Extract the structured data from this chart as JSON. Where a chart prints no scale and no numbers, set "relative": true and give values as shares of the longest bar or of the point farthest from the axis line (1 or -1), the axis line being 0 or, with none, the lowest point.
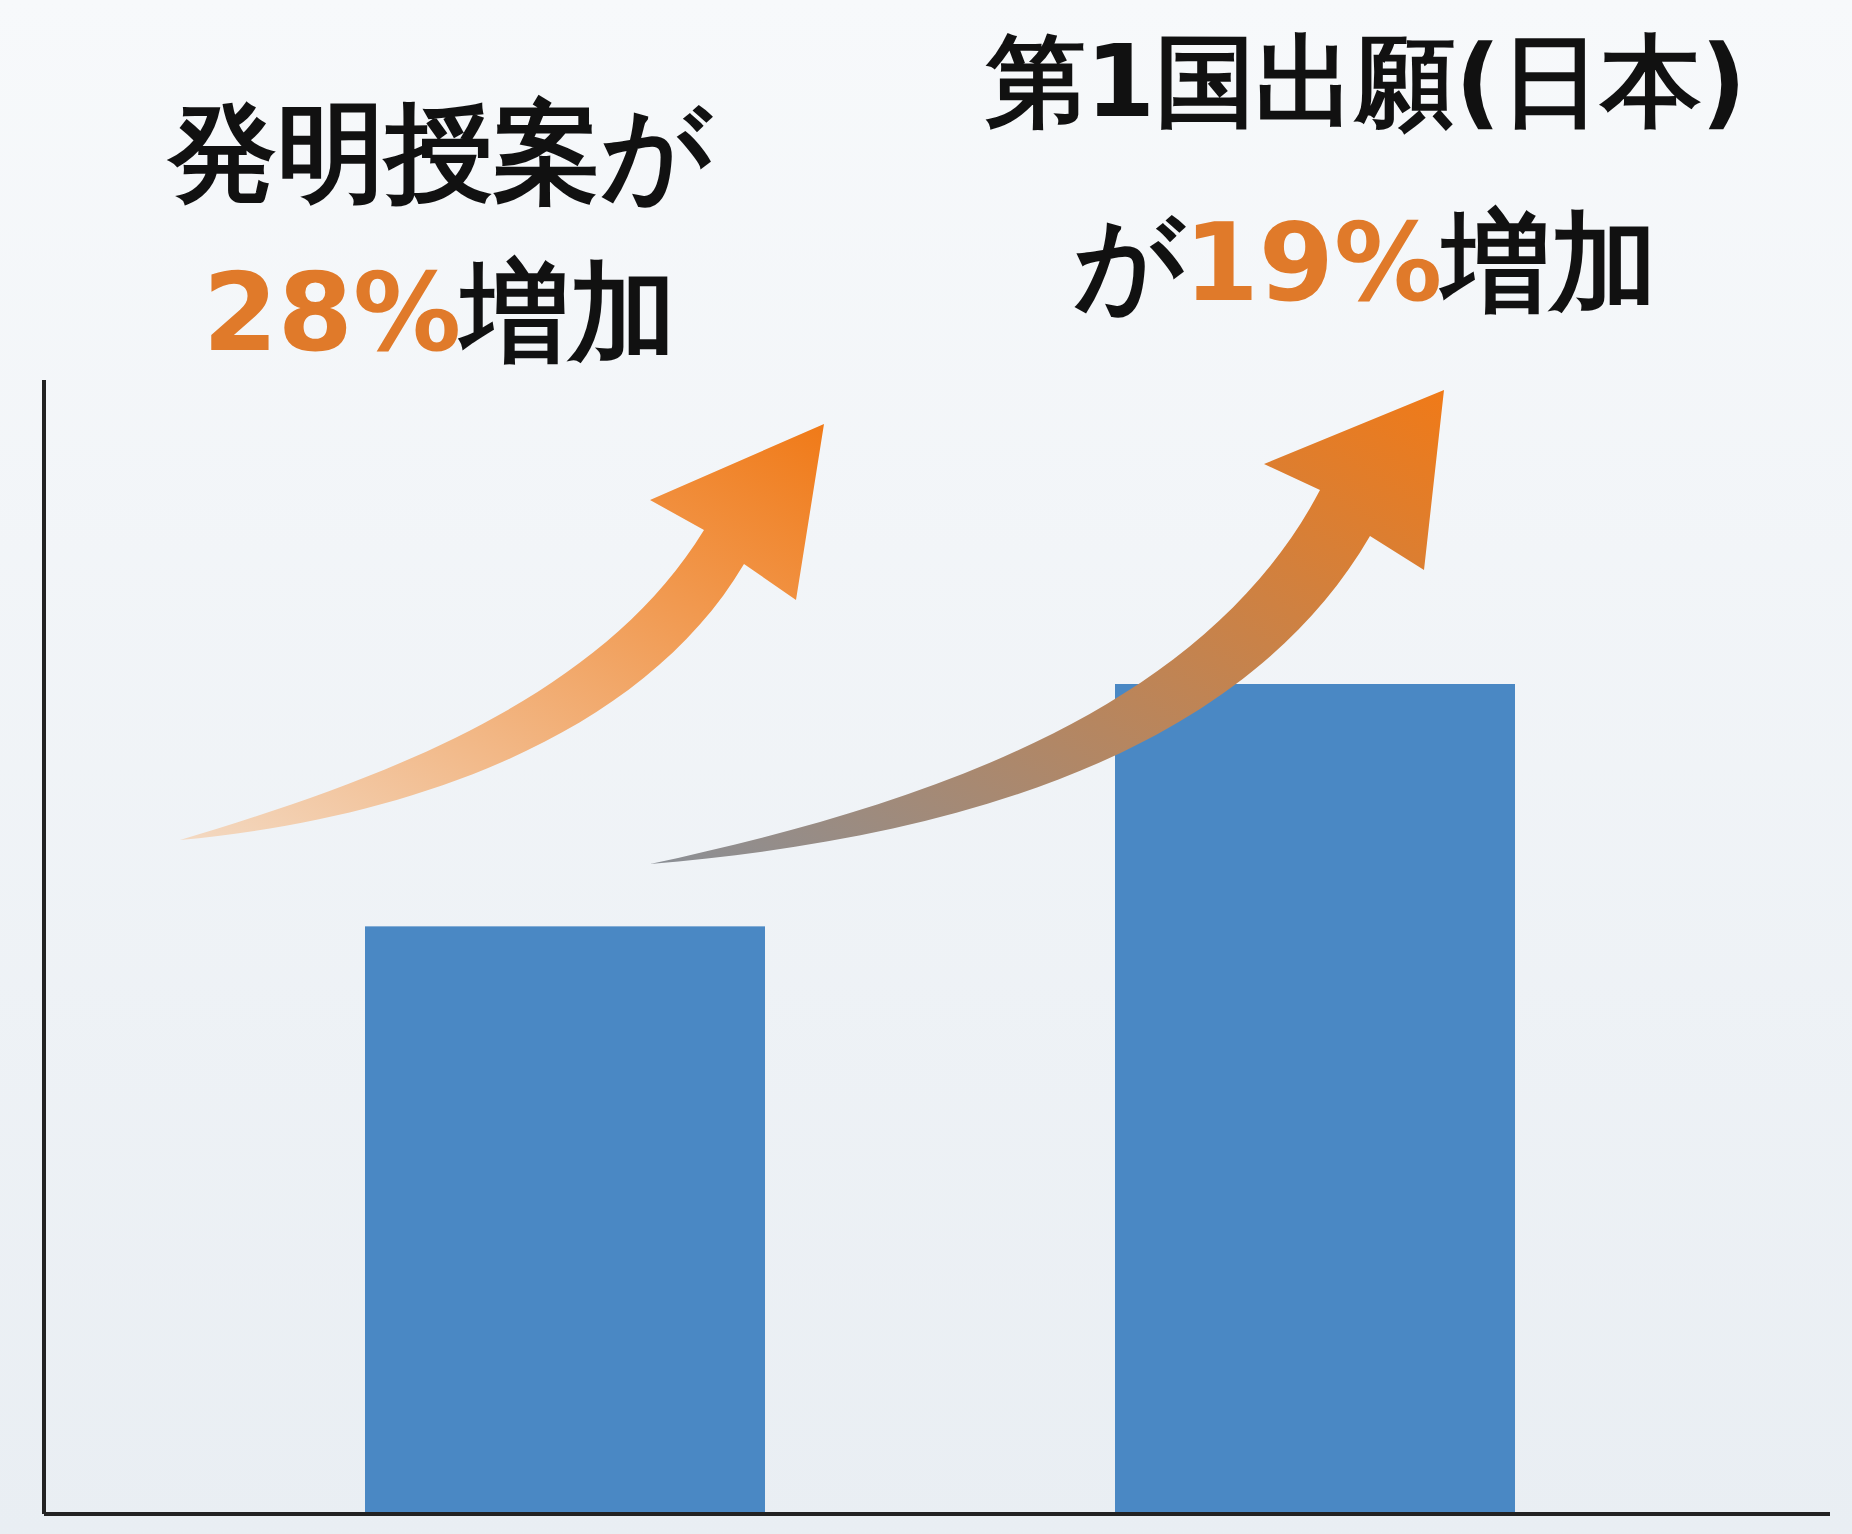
{
  "chart_data": {
    "type": "bar",
    "relative": true,
    "categories": [
      null,
      null
    ],
    "values": [
      0.708,
      1
    ],
    "colors": [
      "#4a88c4",
      "#4a88c4"
    ],
    "annotations": [
      "発明授案が\n28%増加",
      "第1国出願(日本)\nが19%増加"
    ]
  }
}
